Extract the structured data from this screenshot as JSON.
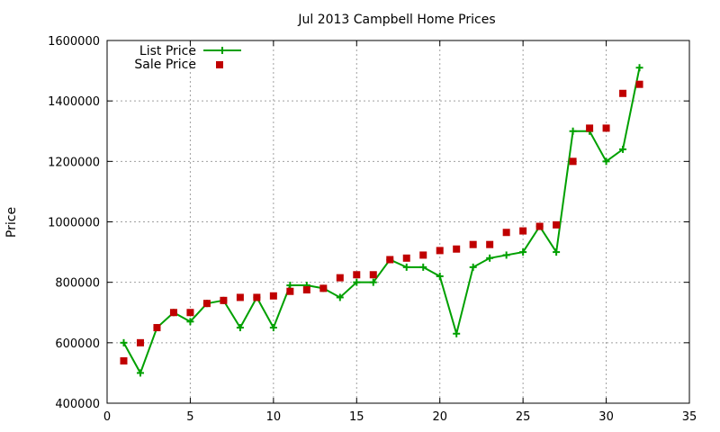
{
  "chart_data": {
    "type": "line",
    "title": "Jul 2013 Campbell Home Prices",
    "xlabel": "",
    "ylabel": "Price",
    "xlim": [
      0,
      35
    ],
    "ylim": [
      400000,
      1600000
    ],
    "x_ticks": [
      0,
      5,
      10,
      15,
      20,
      25,
      30,
      35
    ],
    "y_ticks": [
      400000,
      600000,
      800000,
      1000000,
      1200000,
      1400000,
      1600000
    ],
    "grid": true,
    "legend_position": "top-left",
    "series": [
      {
        "name": "List Price",
        "style": "line-with-plus-markers",
        "color": "#00a000",
        "x": [
          1,
          2,
          3,
          4,
          5,
          6,
          7,
          8,
          9,
          10,
          11,
          12,
          13,
          14,
          15,
          16,
          17,
          18,
          19,
          20,
          21,
          22,
          23,
          24,
          25,
          26,
          27,
          28,
          29,
          30,
          31,
          32
        ],
        "values": [
          600000,
          500000,
          650000,
          700000,
          670000,
          730000,
          740000,
          650000,
          750000,
          650000,
          790000,
          790000,
          780000,
          750000,
          800000,
          800000,
          875000,
          850000,
          850000,
          820000,
          630000,
          850000,
          880000,
          890000,
          900000,
          985000,
          900000,
          1300000,
          1300000,
          1200000,
          1240000,
          1510000
        ]
      },
      {
        "name": "Sale Price",
        "style": "square-markers",
        "color": "#c00000",
        "x": [
          1,
          2,
          3,
          4,
          5,
          6,
          7,
          8,
          9,
          10,
          11,
          12,
          13,
          14,
          15,
          16,
          17,
          18,
          19,
          20,
          21,
          22,
          23,
          24,
          25,
          26,
          27,
          28,
          29,
          30,
          31,
          32
        ],
        "values": [
          540000,
          600000,
          650000,
          700000,
          700000,
          730000,
          740000,
          750000,
          750000,
          755000,
          770000,
          775000,
          780000,
          815000,
          825000,
          825000,
          875000,
          880000,
          890000,
          905000,
          910000,
          925000,
          925000,
          965000,
          970000,
          985000,
          990000,
          1200000,
          1310000,
          1310000,
          1425000,
          1455000
        ]
      }
    ]
  }
}
